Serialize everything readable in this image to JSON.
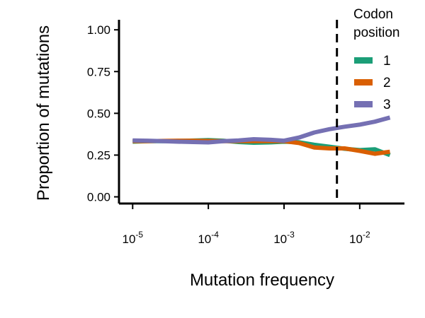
{
  "chart_data": {
    "type": "line",
    "xlabel": "Mutation frequency",
    "ylabel": "Proportion of mutations",
    "x_scale": "log10",
    "xlim": [
      6.6e-06,
      0.039
    ],
    "ylim": [
      -0.04,
      1.06
    ],
    "x_ticks": [
      {
        "value": 1e-05,
        "base": "10",
        "exp": "-5"
      },
      {
        "value": 0.0001,
        "base": "10",
        "exp": "-4"
      },
      {
        "value": 0.001,
        "base": "10",
        "exp": "-3"
      },
      {
        "value": 0.01,
        "base": "10",
        "exp": "-2"
      }
    ],
    "y_ticks": [
      {
        "value": 0,
        "label": "0.00"
      },
      {
        "value": 0.25,
        "label": "0.25"
      },
      {
        "value": 0.5,
        "label": "0.50"
      },
      {
        "value": 0.75,
        "label": "0.75"
      },
      {
        "value": 1,
        "label": "1.00"
      }
    ],
    "vline": {
      "x": 0.005,
      "style": "dashed",
      "color": "#000000"
    },
    "legend": {
      "title_line1": "Codon",
      "title_line2": "position",
      "placement": "top-right"
    },
    "x": [
      1e-05,
      1.58e-05,
      2.51e-05,
      3.98e-05,
      6.31e-05,
      0.0001,
      0.000158,
      0.000251,
      0.000398,
      0.000631,
      0.001,
      0.00158,
      0.00251,
      0.00398,
      0.00631,
      0.01,
      0.0158,
      0.0251
    ],
    "series": [
      {
        "name": "1",
        "color": "#1b9e77",
        "values": [
          0.33,
          0.333,
          0.333,
          0.335,
          0.337,
          0.34,
          0.336,
          0.328,
          0.324,
          0.326,
          0.33,
          0.327,
          0.312,
          0.3,
          0.288,
          0.28,
          0.285,
          0.25
        ]
      },
      {
        "name": "2",
        "color": "#d95f02",
        "values": [
          0.333,
          0.333,
          0.335,
          0.336,
          0.336,
          0.335,
          0.333,
          0.333,
          0.333,
          0.333,
          0.333,
          0.322,
          0.295,
          0.29,
          0.29,
          0.275,
          0.258,
          0.27
        ]
      },
      {
        "name": "3",
        "color": "#7570b3",
        "values": [
          0.338,
          0.336,
          0.333,
          0.33,
          0.328,
          0.326,
          0.333,
          0.338,
          0.345,
          0.342,
          0.336,
          0.355,
          0.385,
          0.405,
          0.42,
          0.432,
          0.45,
          0.475
        ]
      }
    ]
  }
}
